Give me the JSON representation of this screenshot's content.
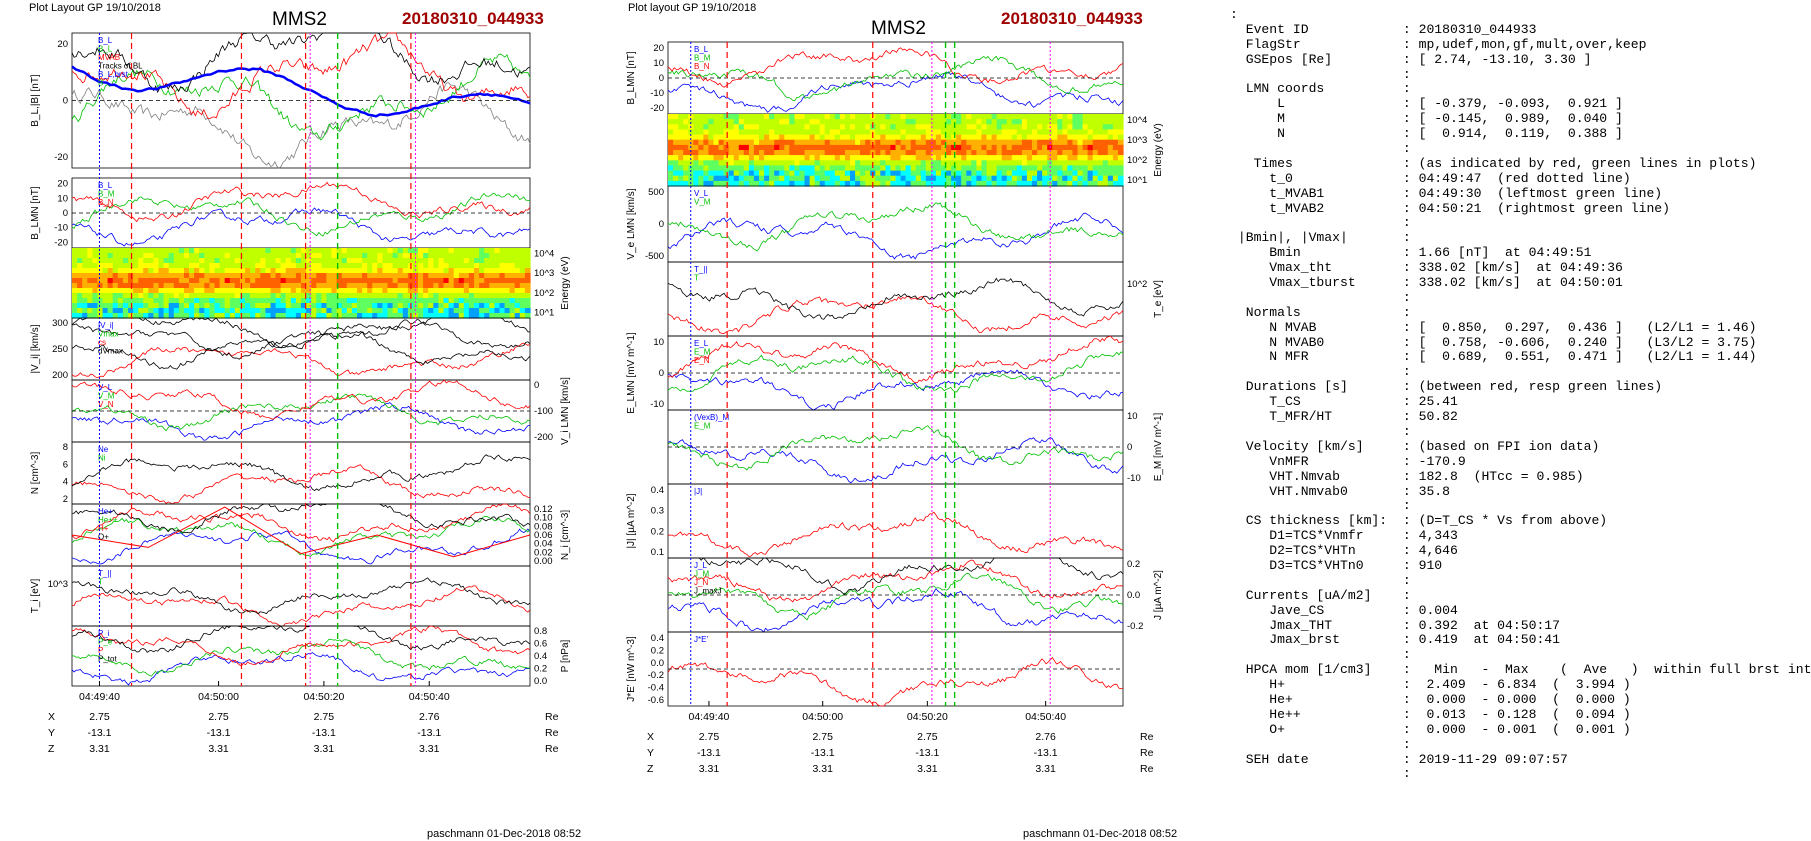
{
  "left": {
    "header": {
      "layout": "Plot Layout GP 19/10/2018",
      "spacecraft": "MMS2",
      "event": "20180310_044933"
    },
    "footer": "paschmann 01-Dec-2018 08:52",
    "panels": [
      {
        "id": "bl",
        "ylabel": "B_L,|B| [nT]",
        "yticks": [
          "20",
          "0",
          "-20"
        ],
        "side": "left",
        "legend": [
          "B_L",
          "B_L",
          "MVAB",
          "Tracks of BL",
          "B_L,brst",
          "B"
        ]
      },
      {
        "id": "blmn",
        "ylabel": "B_LMN [nT]",
        "yticks": [
          "20",
          "10",
          "0",
          "-10",
          "-20"
        ],
        "side": "left",
        "legend": [
          "B_L",
          "B_M",
          "B_N"
        ]
      },
      {
        "id": "spec",
        "ylabel": "Energy (eV)",
        "yticks": [
          "10^4",
          "10^3",
          "10^2",
          "10^1"
        ],
        "side": "right"
      },
      {
        "id": "vi",
        "ylabel": "|V_i| [km/s]",
        "yticks": [
          "300",
          "250",
          "200"
        ],
        "side": "left",
        "legend": [
          "|V_i|",
          "Vmax",
          "cs",
          "dVmax"
        ]
      },
      {
        "id": "vilmn",
        "ylabel": "V_i LMN [km/s]",
        "yticks": [
          "0",
          "-100",
          "-200"
        ],
        "side": "right",
        "legend": [
          "V_L",
          "V_M",
          "V_N"
        ]
      },
      {
        "id": "n",
        "ylabel": "N [cm^-3]",
        "yticks": [
          "8",
          "6",
          "4",
          "2"
        ],
        "side": "left",
        "legend": [
          "Ne",
          "Ni"
        ]
      },
      {
        "id": "ni",
        "ylabel": "N_i [cm^-3]",
        "yticks": [
          "0.12",
          "0.10",
          "0.08",
          "0.06",
          "0.04",
          "0.02",
          "0.00"
        ],
        "side": "right",
        "legend": [
          "He+",
          "He++",
          "H+",
          "O+"
        ]
      },
      {
        "id": "ti",
        "ylabel": "T_i [eV]",
        "yticks": [
          "10^3"
        ],
        "side": "left",
        "legend": [
          "T_||",
          "T"
        ]
      },
      {
        "id": "p",
        "ylabel": "P [nPa]",
        "yticks": [
          "0.8",
          "0.6",
          "0.4",
          "0.2",
          "0.0"
        ],
        "side": "right",
        "legend": [
          "P_i",
          "P_e",
          "P",
          "P_tot"
        ]
      }
    ],
    "time_ticks": [
      "04:49:40",
      "04:50:00",
      "04:50:20",
      "04:50:40"
    ],
    "position": {
      "labels": [
        "X",
        "Y",
        "Z"
      ],
      "rows": [
        [
          "2.75",
          "2.75",
          "2.75",
          "2.76"
        ],
        [
          "-13.1",
          "-13.1",
          "-13.1",
          "-13.1"
        ],
        [
          "3.31",
          "3.31",
          "3.31",
          "3.31"
        ]
      ],
      "unit": "Re"
    }
  },
  "mid": {
    "header": {
      "layout": "Plot layout GP 19/10/2018",
      "spacecraft": "MMS2",
      "event": "20180310_044933"
    },
    "footer": "paschmann 01-Dec-2018 08:52",
    "panels": [
      {
        "id": "blmn",
        "ylabel": "B_LMN [nT]",
        "yticks": [
          "20",
          "10",
          "0",
          "-10",
          "-20"
        ],
        "side": "left",
        "legend": [
          "B_L",
          "B_M",
          "B_N"
        ]
      },
      {
        "id": "spec",
        "ylabel": "Energy (eV)",
        "yticks": [
          "10^4",
          "10^3",
          "10^2",
          "10^1"
        ],
        "side": "right"
      },
      {
        "id": "ve",
        "ylabel": "V_e LMN [km/s]",
        "yticks": [
          "500",
          "0",
          "-500"
        ],
        "side": "left",
        "legend": [
          "V_L",
          "V_M"
        ]
      },
      {
        "id": "te",
        "ylabel": "T_e [eV]",
        "yticks": [
          "10^2"
        ],
        "side": "right",
        "legend": [
          "T_||",
          "T"
        ]
      },
      {
        "id": "elmn",
        "ylabel": "E_LMN [mV m^-1]",
        "yticks": [
          "10",
          "0",
          "-10"
        ],
        "side": "left",
        "legend": [
          "E_L",
          "E_M",
          "E_N"
        ]
      },
      {
        "id": "em",
        "ylabel": "E_M [mV m^-1]",
        "yticks": [
          "10",
          "0",
          "-10"
        ],
        "side": "right",
        "legend": [
          "(VexB)_M",
          "E_M"
        ]
      },
      {
        "id": "j",
        "ylabel": "|J| [µA m^-2]",
        "yticks": [
          "0.4",
          "0.3",
          "0.2",
          "0.1"
        ],
        "side": "left",
        "legend": [
          "|J|"
        ]
      },
      {
        "id": "jlmn",
        "ylabel": "J [µA m^-2]",
        "yticks": [
          "0.2",
          "0.0",
          "-0.2"
        ],
        "side": "right",
        "legend": [
          "J_L",
          "J_M",
          "J_N",
          "J_maxJ"
        ]
      },
      {
        "id": "je",
        "ylabel": "J*E' [nW m^-3]",
        "yticks": [
          "0.4",
          "0.2",
          "0.0",
          "-0.2",
          "-0.4",
          "-0.6"
        ],
        "side": "left",
        "legend": [
          "J*E'"
        ]
      }
    ],
    "time_ticks": [
      "04:49:40",
      "04:50:00",
      "04:50:20",
      "04:50:40"
    ],
    "position": {
      "labels": [
        "X",
        "Y",
        "Z"
      ],
      "rows": [
        [
          "2.75",
          "2.75",
          "2.75",
          "2.76"
        ],
        [
          "-13.1",
          "-13.1",
          "-13.1",
          "-13.1"
        ],
        [
          "3.31",
          "3.31",
          "3.31",
          "3.31"
        ]
      ],
      "unit": "Re"
    }
  },
  "summary": {
    "lines": [
      ":",
      "  Event ID            : 20180310_044933",
      "  FlagStr             : mp,udef,mon,gf,mult,over,keep",
      "  GSEpos [Re]         : [ 2.74, -13.10, 3.30 ]",
      "                      :",
      "  LMN coords          :",
      "      L               : [ -0.379, -0.093,  0.921 ]",
      "      M               : [ -0.145,  0.989,  0.040 ]",
      "      N               : [  0.914,  0.119,  0.388 ]",
      "                      :",
      "   Times              : (as indicated by red, green lines in plots)",
      "     t_0              : 04:49:47  (red dotted line)",
      "     t_MVAB1          : 04:49:30  (leftmost green line)",
      "     t_MVAB2          : 04:50:21  (rightmost green line)",
      "                      :",
      " |Bmin|, |Vmax|       :",
      "     Bmin             : 1.66 [nT]  at 04:49:51",
      "     Vmax_tht         : 338.02 [km/s]  at 04:49:36",
      "     Vmax_tburst      : 338.02 [km/s]  at 04:50:01",
      "                      :",
      "  Normals             :",
      "     N MVAB           : [  0.850,  0.297,  0.436 ]   (L2/L1 = 1.46)",
      "     N MVAB0          : [  0.758, -0.606,  0.240 ]   (L3/L2 = 3.75)",
      "     N MFR            : [  0.689,  0.551,  0.471 ]   (L2/L1 = 1.44)",
      "                      :",
      "  Durations [s]       : (between red, resp green lines)",
      "     T_CS             : 25.41",
      "     T_MFR/HT         : 50.82",
      "                      :",
      "  Velocity [km/s]     : (based on FPI ion data)",
      "     VnMFR            : -170.9",
      "     VHT.Nmvab        : 182.8  (HTcc = 0.985)",
      "     VHT.Nmvab0       : 35.8",
      "                      :",
      "  CS thickness [km]:  : (D=T_CS * Vs from above)",
      "     D1=TCS*Vnmfr     : 4,343",
      "     D2=TCS*VHTn      : 4,646",
      "     D3=TCS*VHTn0     : 910",
      "                      :",
      "  Currents [uA/m2]    :",
      "     Jave_CS          : 0.004",
      "     Jmax_THT         : 0.392  at 04:50:17",
      "     Jmax_brst        : 0.419  at 04:50:41",
      "                      :",
      "  HPCA mom [1/cm3]    :   Min   -  Max    (  Ave   )  within full brst int",
      "     H+               :  2.409  - 6.834  (  3.994 )",
      "     He+              :  0.000  - 0.000  (  0.000 )",
      "     He++             :  0.013  - 0.128  (  0.094 )",
      "     O+               :  0.000  - 0.001  (  0.001 )",
      "                      :",
      "  SEH date            : 2019-11-29 09:07:57",
      "                      :"
    ]
  }
}
